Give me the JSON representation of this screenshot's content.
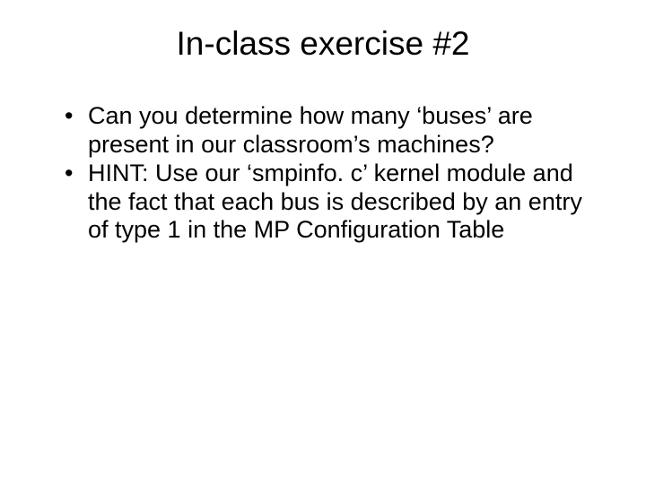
{
  "slide": {
    "title": "In-class exercise #2",
    "title_fontsize": 37,
    "title_color": "#000000",
    "background_color": "#ffffff",
    "bullets": [
      "Can you determine how many ‘buses’ are present in our classroom’s machines?",
      "HINT: Use our ‘smpinfo. c’ kernel module and the fact that each bus is described by an entry of type 1 in the MP Configuration Table"
    ],
    "bullet_fontsize": 27,
    "bullet_color": "#000000",
    "bullet_marker": "•"
  }
}
